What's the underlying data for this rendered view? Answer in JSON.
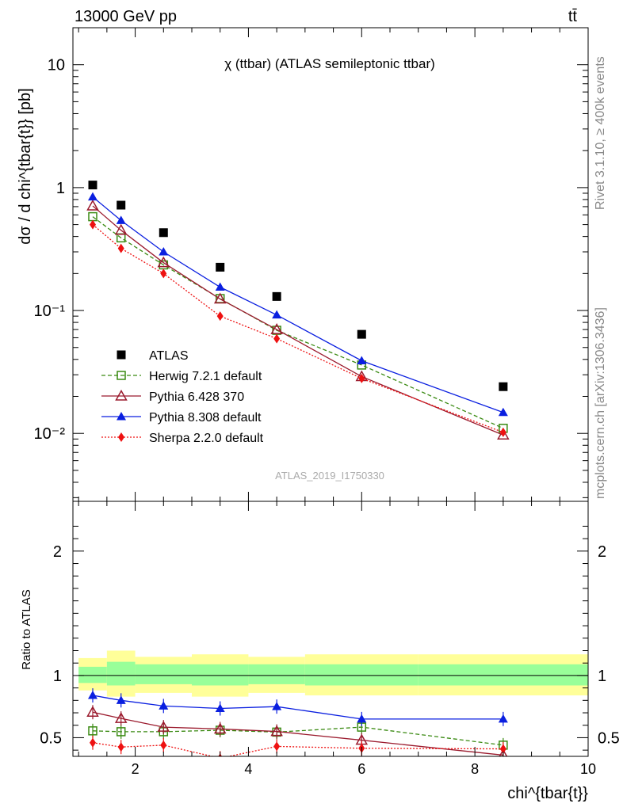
{
  "header": {
    "left": "13000 GeV pp",
    "right": "tt̄"
  },
  "side_labels": {
    "rivet": "Rivet 3.1.10, ≥ 400k events",
    "mcplots": "mcplots.cern.ch [arXiv:1306.3436]"
  },
  "colors": {
    "ATLAS": "#000000",
    "Herwig": "#3a8a12",
    "Pythia6": "#9b1b2e",
    "Pythia8": "#0a1fe0",
    "Sherpa": "#ee1111",
    "band_outer": "#ffff99",
    "band_inner": "#99ff99"
  },
  "chart_data": [
    {
      "type": "line",
      "title": "χ (ttbar) (ATLAS semileptonic ttbar)",
      "watermark": "ATLAS_2019_I1750330",
      "xlabel": "chi^{tbar{t}}",
      "ylabel": "dσ / d chi^{tbar{t}} [pb]",
      "yscale": "log",
      "xlim": [
        0.9,
        10.0
      ],
      "ylim": [
        0.0028,
        20
      ],
      "y_ticks": [
        {
          "v": 0.01,
          "label": "10⁻²"
        },
        {
          "v": 0.1,
          "label": "10⁻¹"
        },
        {
          "v": 1,
          "label": "1"
        },
        {
          "v": 10,
          "label": "10"
        }
      ],
      "legend": "mid-left",
      "x": [
        1.25,
        1.75,
        2.5,
        3.5,
        4.5,
        6.0,
        8.5
      ],
      "series": [
        {
          "name": "ATLAS",
          "marker": "square-filled",
          "line": "none",
          "values": [
            1.05,
            0.72,
            0.43,
            0.225,
            0.13,
            0.064,
            0.024
          ]
        },
        {
          "name": "Herwig 7.2.1 default",
          "marker": "square-open",
          "line": "dashed",
          "values": [
            0.58,
            0.39,
            0.235,
            0.125,
            0.069,
            0.036,
            0.011
          ]
        },
        {
          "name": "Pythia 6.428 370",
          "marker": "triangle-open",
          "line": "solid",
          "values": [
            0.71,
            0.45,
            0.245,
            0.124,
            0.07,
            0.029,
            0.0097
          ]
        },
        {
          "name": "Pythia 8.308 default",
          "marker": "triangle-filled",
          "line": "solid",
          "values": [
            0.84,
            0.54,
            0.3,
            0.155,
            0.092,
            0.039,
            0.0148
          ]
        },
        {
          "name": "Sherpa 2.2.0 default",
          "marker": "diamond-filled",
          "line": "dotted",
          "values": [
            0.5,
            0.32,
            0.2,
            0.09,
            0.059,
            0.028,
            0.0102
          ]
        }
      ]
    },
    {
      "type": "line",
      "ylabel": "Ratio to ATLAS",
      "xlabel": "chi^{tbar{t}}",
      "xlim": [
        0.9,
        10.0
      ],
      "ylim": [
        0.35,
        2.4
      ],
      "x_ticks": [
        2,
        4,
        6,
        8,
        10
      ],
      "y_ticks": [
        0.5,
        1,
        2
      ],
      "bins": [
        [
          1.0,
          1.5
        ],
        [
          1.5,
          2.0
        ],
        [
          2.0,
          3.0
        ],
        [
          3.0,
          4.0
        ],
        [
          4.0,
          5.0
        ],
        [
          5.0,
          7.0
        ],
        [
          7.0,
          10.0
        ]
      ],
      "band_outer": [
        [
          0.88,
          1.14
        ],
        [
          0.83,
          1.2
        ],
        [
          0.86,
          1.15
        ],
        [
          0.83,
          1.17
        ],
        [
          0.86,
          1.15
        ],
        [
          0.84,
          1.17
        ],
        [
          0.84,
          1.17
        ]
      ],
      "band_inner": [
        [
          0.94,
          1.07
        ],
        [
          0.92,
          1.11
        ],
        [
          0.93,
          1.09
        ],
        [
          0.92,
          1.09
        ],
        [
          0.93,
          1.09
        ],
        [
          0.92,
          1.09
        ],
        [
          0.92,
          1.09
        ]
      ],
      "x": [
        1.25,
        1.75,
        2.5,
        3.5,
        4.5,
        6.0,
        8.5
      ],
      "series": [
        {
          "name": "Herwig 7.2.1 default",
          "values": [
            0.555,
            0.548,
            0.548,
            0.56,
            0.545,
            0.585,
            0.44
          ]
        },
        {
          "name": "Pythia 6.428 370",
          "values": [
            0.705,
            0.655,
            0.585,
            0.57,
            0.55,
            0.48,
            0.36
          ]
        },
        {
          "name": "Pythia 8.308 default",
          "values": [
            0.84,
            0.8,
            0.755,
            0.735,
            0.75,
            0.65,
            0.65
          ]
        },
        {
          "name": "Sherpa 2.2.0 default",
          "values": [
            0.46,
            0.425,
            0.44,
            0.335,
            0.43,
            0.415,
            0.41
          ]
        }
      ]
    }
  ]
}
